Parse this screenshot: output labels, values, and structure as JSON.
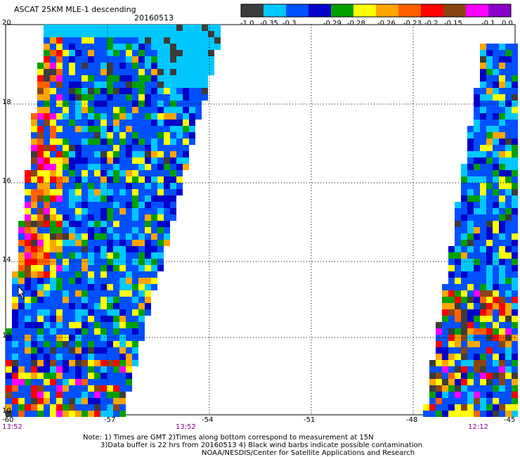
{
  "header": {
    "title": "ASCAT 25KM MLE-1 descending",
    "date": "20160513"
  },
  "colorbar": {
    "colors": [
      "#3c3c3c",
      "#00c8ff",
      "#0050ff",
      "#0000c8",
      "#00a000",
      "#ffff00",
      "#ffa500",
      "#ff6000",
      "#ff0000",
      "#8b4513",
      "#ff00ff",
      "#8b00c8"
    ],
    "tick_labels": [
      "-1.0",
      "-0.35",
      "-0.3",
      "-0.29",
      "-0.28",
      "-0.26",
      "-0.23",
      "-0.2",
      "-0.15",
      "-0.1",
      "0.0"
    ]
  },
  "map": {
    "lat_labels": [
      "20",
      "18",
      "16",
      "14",
      "12",
      "10"
    ],
    "lon_labels": [
      "-60",
      "-57",
      "-54",
      "-51",
      "-48",
      "-45"
    ],
    "time_labels": [
      "13:52",
      "13:52",
      "12:12"
    ],
    "gridlines": true
  },
  "notes": {
    "line1": "Note: 1) Times are GMT 2)Times along bottom correspond to measurement at 15N",
    "line2": "3)Data buffer is 22 hrs from 20160513 4) Black wind barbs indicate possible contamination",
    "line3": "NOAA/NESDIS/Center for Satellite Applications and Research"
  }
}
